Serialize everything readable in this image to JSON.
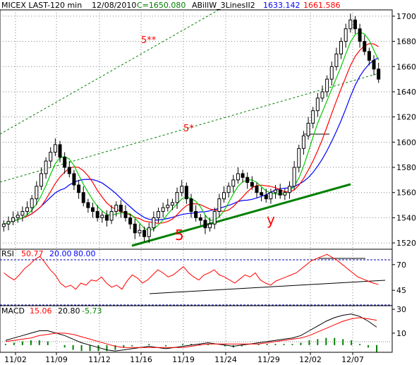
{
  "header": {
    "symbol": "MICEX LAST-120 min",
    "date": "12/08/2010",
    "close": "C=1650.080",
    "indicator_name": "ABillW_3LinesII2",
    "indicator_val1": "1633.142",
    "indicator_val2": "1661.586"
  },
  "colors": {
    "background": "#ffffff",
    "grid": "#808080",
    "candle": "#000000",
    "ma_fast": "#00cc00",
    "ma_mid": "#ff0000",
    "ma_slow": "#0000ff",
    "channel": "#008000",
    "support": "#008000",
    "rsi": "#ff0000",
    "rsi_levels": "#0000aa",
    "macd_line": "#000000",
    "macd_signal": "#ff0000",
    "macd_hist": "#008000",
    "text_red": "#ff0000",
    "text_blue": "#0000ff",
    "text_green": "#008000"
  },
  "chart_data": [
    {
      "type": "candlestick",
      "panel": "price",
      "title": "MICEX LAST-120 min",
      "x_ticks": [
        "11/02",
        "11/09",
        "11/12",
        "11/16",
        "11/19",
        "11/24",
        "11/29",
        "12/02",
        "12/07"
      ],
      "ylim": [
        1515,
        1705
      ],
      "y_ticks": [
        1520,
        1540,
        1560,
        1580,
        1600,
        1620,
        1640,
        1660,
        1680,
        1700
      ],
      "grid": true,
      "close_series": [
        1535,
        1537,
        1540,
        1542,
        1545,
        1548,
        1555,
        1565,
        1575,
        1585,
        1592,
        1598,
        1588,
        1580,
        1575,
        1566,
        1560,
        1552,
        1548,
        1545,
        1540,
        1542,
        1538,
        1545,
        1550,
        1545,
        1540,
        1535,
        1528,
        1530,
        1525,
        1532,
        1540,
        1545,
        1548,
        1550,
        1552,
        1560,
        1565,
        1555,
        1545,
        1540,
        1538,
        1532,
        1535,
        1545,
        1555,
        1560,
        1565,
        1570,
        1575,
        1572,
        1568,
        1565,
        1560,
        1558,
        1555,
        1560,
        1562,
        1558,
        1560,
        1565,
        1580,
        1595,
        1605,
        1615,
        1625,
        1635,
        1640,
        1650,
        1660,
        1670,
        1680,
        1690,
        1697,
        1690,
        1680,
        1672,
        1665,
        1658,
        1650
      ],
      "lines": [
        {
          "name": "ABillW_3LinesII2 fast",
          "color": "#00cc00"
        },
        {
          "name": "ABillW_3LinesII2 mid",
          "color": "#ff0000"
        },
        {
          "name": "ABillW_3LinesII2 slow",
          "color": "#0000ff"
        }
      ],
      "annotations": [
        {
          "text": "5**",
          "color": "#ff0000"
        },
        {
          "text": "5*",
          "color": "#ff0000"
        },
        {
          "text": "5",
          "color": "#ff0000"
        },
        {
          "text": "y",
          "color": "#ff0000"
        }
      ]
    },
    {
      "type": "line",
      "panel": "rsi",
      "title": "RSI",
      "values_text": [
        "50.77",
        "20.00",
        "80.00"
      ],
      "levels": [
        20,
        80
      ],
      "ylim": [
        30,
        85
      ],
      "y_ticks": [
        45,
        70
      ],
      "series": [
        {
          "values": [
            62,
            58,
            55,
            60,
            66,
            70,
            75,
            78,
            72,
            65,
            60,
            52,
            48,
            50,
            46,
            52,
            50,
            55,
            54,
            58,
            52,
            48,
            50,
            46,
            54,
            60,
            57,
            52,
            55,
            60,
            65,
            62,
            58,
            60,
            64,
            68,
            62,
            58,
            55,
            60,
            62,
            65,
            60,
            58,
            55,
            52,
            56,
            60,
            58,
            62,
            55,
            52,
            50,
            54,
            56,
            58,
            60,
            62,
            66,
            70,
            74,
            76,
            78,
            80,
            77,
            74,
            70,
            66,
            62,
            58,
            56,
            54,
            52,
            50.77
          ]
        }
      ]
    },
    {
      "type": "line",
      "panel": "macd",
      "title": "MACD",
      "values_text": [
        "15.06",
        "20.80",
        "-5.73"
      ],
      "ylim": [
        -6,
        33
      ],
      "y_ticks": [
        10,
        30
      ],
      "series": [
        {
          "values": [
            4,
            6,
            8,
            10,
            12,
            12,
            10,
            8,
            5,
            2,
            0,
            -2,
            -4,
            -5,
            -4,
            -3,
            -2,
            -1,
            -2,
            -3,
            -2,
            -1,
            0,
            1,
            2,
            1,
            0,
            -1,
            0,
            1,
            2,
            3,
            4,
            5,
            6,
            8,
            12,
            16,
            20,
            23,
            25,
            26,
            24,
            20,
            15.06
          ]
        },
        {
          "values": [
            3,
            4,
            5,
            6,
            8,
            9,
            10,
            10,
            9,
            7,
            5,
            3,
            1,
            -1,
            -2,
            -2,
            -2,
            -2,
            -2,
            -2,
            -2,
            -2,
            -1,
            0,
            1,
            1,
            1,
            1,
            1,
            1,
            1,
            2,
            3,
            4,
            5,
            6,
            8,
            11,
            14,
            17,
            20,
            22,
            23,
            22,
            20.8
          ]
        }
      ],
      "hist": [
        1,
        2,
        3,
        4,
        4,
        3,
        0,
        -2,
        -4,
        -5,
        -5,
        -5,
        -5,
        -4,
        -2,
        -1,
        0,
        1,
        0,
        -1,
        0,
        1,
        1,
        1,
        1,
        0,
        -1,
        -2,
        -1,
        0,
        1,
        1,
        1,
        1,
        1,
        2,
        4,
        5,
        6,
        6,
        5,
        4,
        1,
        -2,
        -5.73
      ]
    }
  ]
}
